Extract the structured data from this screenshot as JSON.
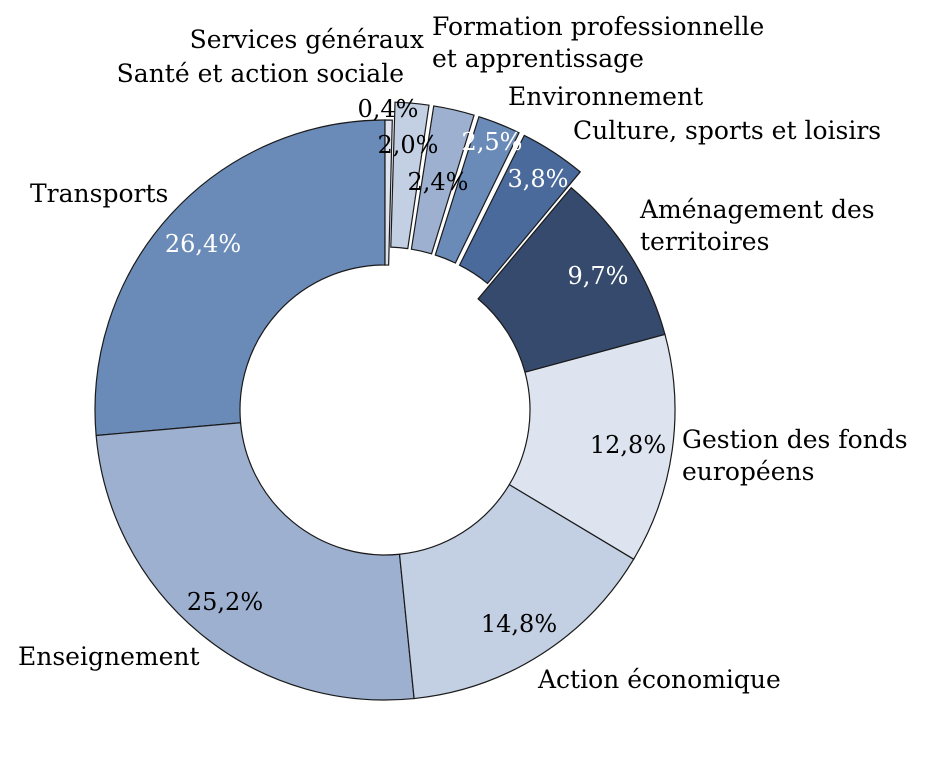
{
  "chart_data": {
    "type": "pie",
    "donut": true,
    "exploded_categories": [
      "Services généraux",
      "Formation professionnelle et apprentissage",
      "Environnement",
      "Culture, sports et loisirs"
    ],
    "series": [
      {
        "name": "Transports",
        "value": 26.4,
        "pct_label": "26,4%",
        "label_lines": [
          "Transports"
        ],
        "color": "#6a8bb8",
        "pct_color": "#ffffff"
      },
      {
        "name": "Enseignement",
        "value": 25.2,
        "pct_label": "25,2%",
        "label_lines": [
          "Enseignement"
        ],
        "color": "#9db0cf",
        "pct_color": "#000000"
      },
      {
        "name": "Action économique",
        "value": 14.8,
        "pct_label": "14,8%",
        "label_lines": [
          "Action économique"
        ],
        "color": "#c3cfe2",
        "pct_color": "#000000"
      },
      {
        "name": "Gestion des fonds européens",
        "value": 12.8,
        "pct_label": "12,8%",
        "label_lines": [
          "Gestion des fonds",
          "européens"
        ],
        "color": "#dde4ef",
        "pct_color": "#000000"
      },
      {
        "name": "Aménagement des territoires",
        "value": 9.7,
        "pct_label": "9,7%",
        "label_lines": [
          "Aménagement des",
          "territoires"
        ],
        "color": "#354a6c",
        "pct_color": "#ffffff"
      },
      {
        "name": "Culture, sports et loisirs",
        "value": 3.8,
        "pct_label": "3,8%",
        "label_lines": [
          "Culture, sports et loisirs"
        ],
        "color": "#4a6a9c",
        "pct_color": "#ffffff"
      },
      {
        "name": "Environnement",
        "value": 2.5,
        "pct_label": "2,5%",
        "label_lines": [
          "Environnement"
        ],
        "color": "#6a8bb8",
        "pct_color": "#ffffff"
      },
      {
        "name": "Formation professionnelle et apprentissage",
        "value": 2.4,
        "pct_label": "2,4%",
        "label_lines": [
          "Formation professionnelle",
          "et apprentissage"
        ],
        "color": "#9db0cf",
        "pct_color": "#000000"
      },
      {
        "name": "Services généraux",
        "value": 2.0,
        "pct_label": "2,0%",
        "label_lines": [
          "Services généraux"
        ],
        "color": "#c3cfe2",
        "pct_color": "#000000"
      },
      {
        "name": "Santé et action sociale",
        "value": 0.4,
        "pct_label": "0,4%",
        "label_lines": [
          "Santé et action sociale"
        ],
        "color": "#dde4ef",
        "pct_color": "#000000"
      }
    ]
  }
}
